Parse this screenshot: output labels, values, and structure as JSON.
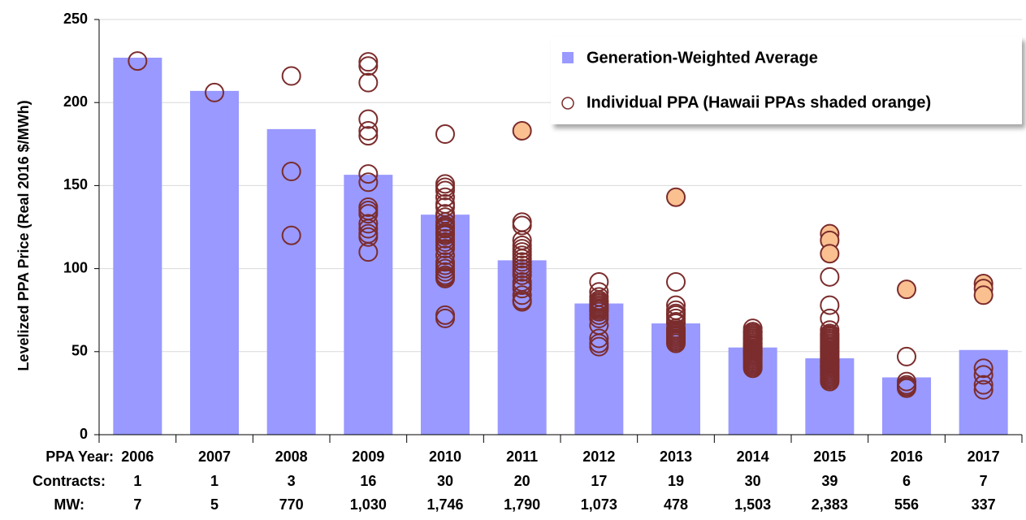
{
  "chart_data": {
    "type": "bar+scatter",
    "y_label": "Levelized  PPA Price (Real 2016 $/MWh)",
    "categories": [
      "2006",
      "2007",
      "2008",
      "2009",
      "2010",
      "2011",
      "2012",
      "2013",
      "2014",
      "2015",
      "2016",
      "2017"
    ],
    "ylim": [
      0,
      250
    ],
    "yticks": [
      0,
      50,
      100,
      150,
      200,
      250
    ],
    "grid": true,
    "legend": "top-right",
    "series": [
      {
        "name": "Generation-Weighted Average",
        "color": "#9999ff",
        "values": [
          227,
          207,
          184,
          156.5,
          132.5,
          105,
          79,
          67,
          52.5,
          46,
          34.5,
          51
        ]
      },
      {
        "name": "Individual PPA (Hawaii PPAs shaded orange)",
        "color": "#7b2c2c",
        "hawaii_color": "#fac090",
        "x": [
          2006,
          2007,
          2008,
          2008,
          2008,
          2009,
          2009,
          2009,
          2009,
          2009,
          2009,
          2009,
          2009,
          2009,
          2009,
          2009,
          2009,
          2009,
          2009,
          2009,
          2009,
          2010,
          2010,
          2010,
          2010,
          2010,
          2010,
          2010,
          2010,
          2010,
          2010,
          2010,
          2010,
          2010,
          2010,
          2010,
          2010,
          2010,
          2010,
          2010,
          2010,
          2010,
          2010,
          2010,
          2010,
          2010,
          2010,
          2010,
          2010,
          2010,
          2010,
          2011,
          2011,
          2011,
          2011,
          2011,
          2011,
          2011,
          2011,
          2011,
          2011,
          2011,
          2011,
          2011,
          2011,
          2011,
          2011,
          2011,
          2011,
          2011,
          2011,
          2012,
          2012,
          2012,
          2012,
          2012,
          2012,
          2012,
          2012,
          2012,
          2012,
          2012,
          2012,
          2012,
          2012,
          2012,
          2012,
          2012,
          2013,
          2013,
          2013,
          2013,
          2013,
          2013,
          2013,
          2013,
          2013,
          2013,
          2013,
          2013,
          2013,
          2013,
          2013,
          2013,
          2013,
          2013,
          2013,
          2014,
          2014,
          2014,
          2014,
          2014,
          2014,
          2014,
          2014,
          2014,
          2014,
          2014,
          2014,
          2014,
          2014,
          2014,
          2014,
          2014,
          2014,
          2014,
          2014,
          2014,
          2014,
          2014,
          2014,
          2014,
          2014,
          2014,
          2014,
          2014,
          2014,
          2015,
          2015,
          2015,
          2015,
          2015,
          2015,
          2015,
          2015,
          2015,
          2015,
          2015,
          2015,
          2015,
          2015,
          2015,
          2015,
          2015,
          2015,
          2015,
          2015,
          2015,
          2015,
          2015,
          2015,
          2015,
          2015,
          2015,
          2015,
          2015,
          2015,
          2015,
          2015,
          2015,
          2015,
          2015,
          2015,
          2015,
          2015,
          2015,
          2016,
          2016,
          2016,
          2016,
          2016,
          2016,
          2017,
          2017,
          2017,
          2017,
          2017,
          2017,
          2017
        ],
        "values": [
          225,
          206,
          216,
          158.5,
          120,
          224.5,
          222,
          212,
          190,
          183,
          180,
          157,
          152,
          137,
          133,
          127,
          124,
          121,
          119,
          110,
          135,
          181,
          151,
          149,
          147,
          143,
          137,
          133,
          131,
          128,
          126,
          124,
          122,
          121,
          120,
          118,
          116,
          114,
          108,
          104,
          102,
          100,
          98,
          96,
          95,
          94,
          72,
          70,
          112,
          139,
          125,
          183,
          128,
          126,
          117,
          112,
          110,
          108,
          106,
          104,
          102,
          100,
          98,
          96,
          92,
          88,
          84,
          81,
          80,
          114,
          90,
          92,
          86,
          83,
          81,
          79,
          78,
          76,
          75,
          74,
          72,
          70,
          66,
          58,
          55,
          53,
          80,
          77,
          143,
          92,
          78,
          75,
          73,
          72,
          70,
          67,
          64,
          62,
          61,
          60,
          59,
          58,
          57,
          56,
          55,
          63,
          68,
          64,
          62,
          61,
          60,
          59,
          58,
          57,
          56,
          55,
          55,
          54,
          53,
          52,
          51,
          50,
          50,
          49,
          48,
          47,
          46,
          45,
          44,
          43,
          42,
          41,
          40,
          58,
          53,
          48,
          62,
          121,
          117,
          109,
          95,
          78,
          70,
          63,
          61,
          59,
          58,
          57,
          56,
          55,
          54,
          53,
          52,
          51,
          50,
          49,
          48,
          47,
          46,
          45,
          44,
          43,
          42,
          41,
          40,
          39,
          38,
          37,
          36,
          35,
          34,
          33,
          32,
          60,
          44,
          41,
          87.5,
          47,
          32,
          30,
          28,
          29,
          91,
          88,
          84,
          40,
          36,
          30,
          27
        ],
        "hawaii": [
          false,
          false,
          false,
          false,
          false,
          false,
          false,
          false,
          false,
          false,
          false,
          false,
          false,
          false,
          false,
          false,
          false,
          false,
          false,
          false,
          false,
          false,
          false,
          false,
          false,
          false,
          false,
          false,
          false,
          false,
          false,
          false,
          false,
          false,
          false,
          false,
          false,
          false,
          false,
          false,
          false,
          false,
          false,
          false,
          false,
          false,
          false,
          false,
          false,
          false,
          false,
          true,
          false,
          false,
          false,
          false,
          false,
          false,
          false,
          false,
          false,
          false,
          false,
          false,
          false,
          false,
          false,
          false,
          false,
          false,
          false,
          false,
          false,
          false,
          false,
          false,
          false,
          false,
          false,
          false,
          false,
          false,
          false,
          false,
          false,
          false,
          false,
          false,
          true,
          false,
          false,
          false,
          false,
          false,
          false,
          false,
          false,
          false,
          false,
          false,
          false,
          false,
          false,
          false,
          false,
          false,
          false,
          false,
          false,
          false,
          false,
          false,
          false,
          false,
          false,
          false,
          false,
          false,
          false,
          false,
          false,
          false,
          false,
          false,
          false,
          false,
          false,
          false,
          false,
          false,
          false,
          false,
          false,
          false,
          false,
          false,
          false,
          true,
          true,
          true,
          false,
          false,
          false,
          false,
          false,
          false,
          false,
          false,
          false,
          false,
          false,
          false,
          false,
          false,
          false,
          false,
          false,
          false,
          false,
          false,
          false,
          false,
          false,
          false,
          false,
          false,
          false,
          false,
          false,
          false,
          false,
          false,
          false,
          false,
          false,
          false,
          true,
          false,
          false,
          false,
          false,
          false,
          true,
          true,
          true,
          false,
          false,
          false,
          false
        ]
      }
    ],
    "table": {
      "year_label": "PPA Year:",
      "rows": [
        {
          "label": "Contracts:",
          "values": [
            1,
            1,
            3,
            16,
            30,
            20,
            17,
            19,
            30,
            39,
            6,
            7
          ]
        },
        {
          "label": "MW:",
          "values": [
            7,
            5,
            770,
            {
              "value": 1030,
              "label": "1,030"
            },
            {
              "value": 1746,
              "label": "1,746"
            },
            {
              "value": 1790,
              "label": "1,790"
            },
            {
              "value": 1073,
              "label": "1,073"
            },
            478,
            {
              "value": 1503,
              "label": "1,503"
            },
            {
              "value": 2383,
              "label": "2,383"
            },
            556,
            337
          ]
        }
      ]
    }
  }
}
